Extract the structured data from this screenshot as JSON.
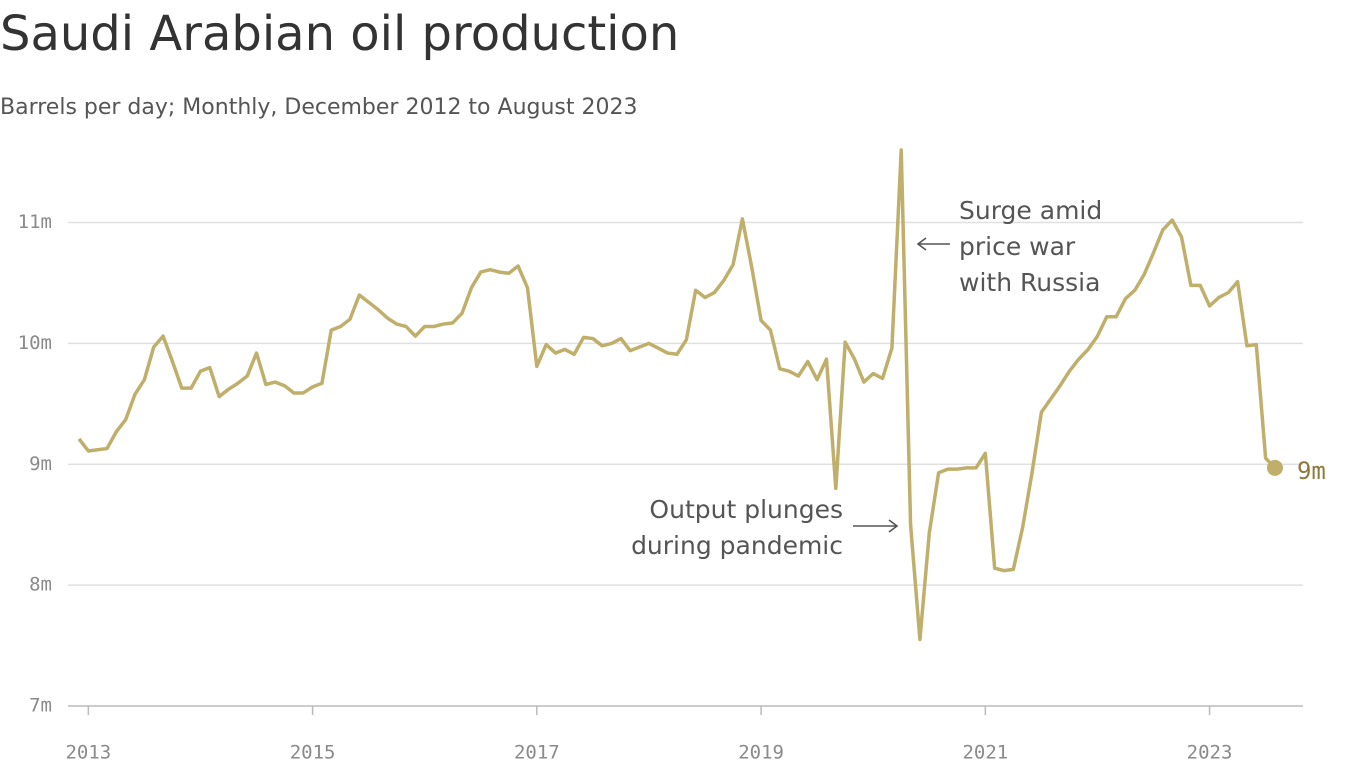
{
  "chart_data": {
    "type": "line",
    "title": "Saudi Arabian oil production",
    "subtitle": "Barrels per day; Monthly, December 2012 to August 2023",
    "x": [
      "2012-12",
      "2013-01",
      "2013-02",
      "2013-03",
      "2013-04",
      "2013-05",
      "2013-06",
      "2013-07",
      "2013-08",
      "2013-09",
      "2013-10",
      "2013-11",
      "2013-12",
      "2014-01",
      "2014-02",
      "2014-03",
      "2014-04",
      "2014-05",
      "2014-06",
      "2014-07",
      "2014-08",
      "2014-09",
      "2014-10",
      "2014-11",
      "2014-12",
      "2015-01",
      "2015-02",
      "2015-03",
      "2015-04",
      "2015-05",
      "2015-06",
      "2015-07",
      "2015-08",
      "2015-09",
      "2015-10",
      "2015-11",
      "2015-12",
      "2016-01",
      "2016-02",
      "2016-03",
      "2016-04",
      "2016-05",
      "2016-06",
      "2016-07",
      "2016-08",
      "2016-09",
      "2016-10",
      "2016-11",
      "2016-12",
      "2017-01",
      "2017-02",
      "2017-03",
      "2017-04",
      "2017-05",
      "2017-06",
      "2017-07",
      "2017-08",
      "2017-09",
      "2017-10",
      "2017-11",
      "2017-12",
      "2018-01",
      "2018-02",
      "2018-03",
      "2018-04",
      "2018-05",
      "2018-06",
      "2018-07",
      "2018-08",
      "2018-09",
      "2018-10",
      "2018-11",
      "2018-12",
      "2019-01",
      "2019-02",
      "2019-03",
      "2019-04",
      "2019-05",
      "2019-06",
      "2019-07",
      "2019-08",
      "2019-09",
      "2019-10",
      "2019-11",
      "2019-12",
      "2020-01",
      "2020-02",
      "2020-03",
      "2020-04",
      "2020-05",
      "2020-06",
      "2020-07",
      "2020-08",
      "2020-09",
      "2020-10",
      "2020-11",
      "2020-12",
      "2021-01",
      "2021-02",
      "2021-03",
      "2021-04",
      "2021-05",
      "2021-06",
      "2021-07",
      "2021-08",
      "2021-09",
      "2021-10",
      "2021-11",
      "2021-12",
      "2022-01",
      "2022-02",
      "2022-03",
      "2022-04",
      "2022-05",
      "2022-06",
      "2022-07",
      "2022-08",
      "2022-09",
      "2022-10",
      "2022-11",
      "2022-12",
      "2023-01",
      "2023-02",
      "2023-03",
      "2023-04",
      "2023-05",
      "2023-06",
      "2023-07",
      "2023-08"
    ],
    "series": [
      {
        "color": "#c0ae6b",
        "values": [
          9.21,
          9.11,
          9.12,
          9.13,
          9.27,
          9.37,
          9.58,
          9.7,
          9.97,
          10.06,
          9.85,
          9.63,
          9.63,
          9.77,
          9.8,
          9.56,
          9.62,
          9.67,
          9.73,
          9.92,
          9.66,
          9.68,
          9.65,
          9.59,
          9.59,
          9.64,
          9.67,
          10.11,
          10.14,
          10.2,
          10.4,
          10.34,
          10.28,
          10.21,
          10.16,
          10.14,
          10.06,
          10.14,
          10.14,
          10.16,
          10.17,
          10.25,
          10.46,
          10.59,
          10.61,
          10.59,
          10.58,
          10.64,
          10.46,
          9.81,
          9.99,
          9.92,
          9.95,
          9.91,
          10.05,
          10.04,
          9.98,
          10.0,
          10.04,
          9.94,
          9.97,
          10.0,
          9.96,
          9.92,
          9.91,
          10.03,
          10.44,
          10.38,
          10.42,
          10.52,
          10.65,
          11.03,
          10.63,
          10.19,
          10.11,
          9.79,
          9.77,
          9.73,
          9.85,
          9.7,
          9.87,
          8.8,
          10.01,
          9.87,
          9.68,
          9.75,
          9.71,
          9.96,
          11.6,
          8.5,
          7.55,
          8.43,
          8.93,
          8.96,
          8.96,
          8.97,
          8.97,
          9.09,
          8.14,
          8.12,
          8.13,
          8.48,
          8.93,
          9.43,
          9.54,
          9.65,
          9.77,
          9.87,
          9.95,
          10.06,
          10.22,
          10.22,
          10.37,
          10.44,
          10.57,
          10.75,
          10.94,
          11.02,
          10.88,
          10.48,
          10.48,
          10.31,
          10.38,
          10.42,
          10.51,
          9.98,
          9.99,
          9.05,
          8.97
        ]
      }
    ],
    "end_label": "9m",
    "xlim": [
      "2012-12",
      "2023-11"
    ],
    "xticks": [
      {
        "value": "2013-01",
        "label": "2013"
      },
      {
        "value": "2015-01",
        "label": "2015"
      },
      {
        "value": "2017-01",
        "label": "2017"
      },
      {
        "value": "2019-01",
        "label": "2019"
      },
      {
        "value": "2021-01",
        "label": "2021"
      },
      {
        "value": "2023-01",
        "label": "2023"
      }
    ],
    "ylim": [
      7,
      11.6
    ],
    "yticks": [
      {
        "value": 7,
        "label": "7m"
      },
      {
        "value": 8,
        "label": "8m"
      },
      {
        "value": 9,
        "label": "9m"
      },
      {
        "value": 10,
        "label": "10m"
      },
      {
        "value": 11,
        "label": "11m"
      }
    ],
    "grid": true,
    "annotations": [
      {
        "lines": [
          "Surge amid",
          "price war",
          "with Russia"
        ]
      },
      {
        "lines": [
          "Output plunges",
          "during pandemic"
        ]
      }
    ]
  }
}
